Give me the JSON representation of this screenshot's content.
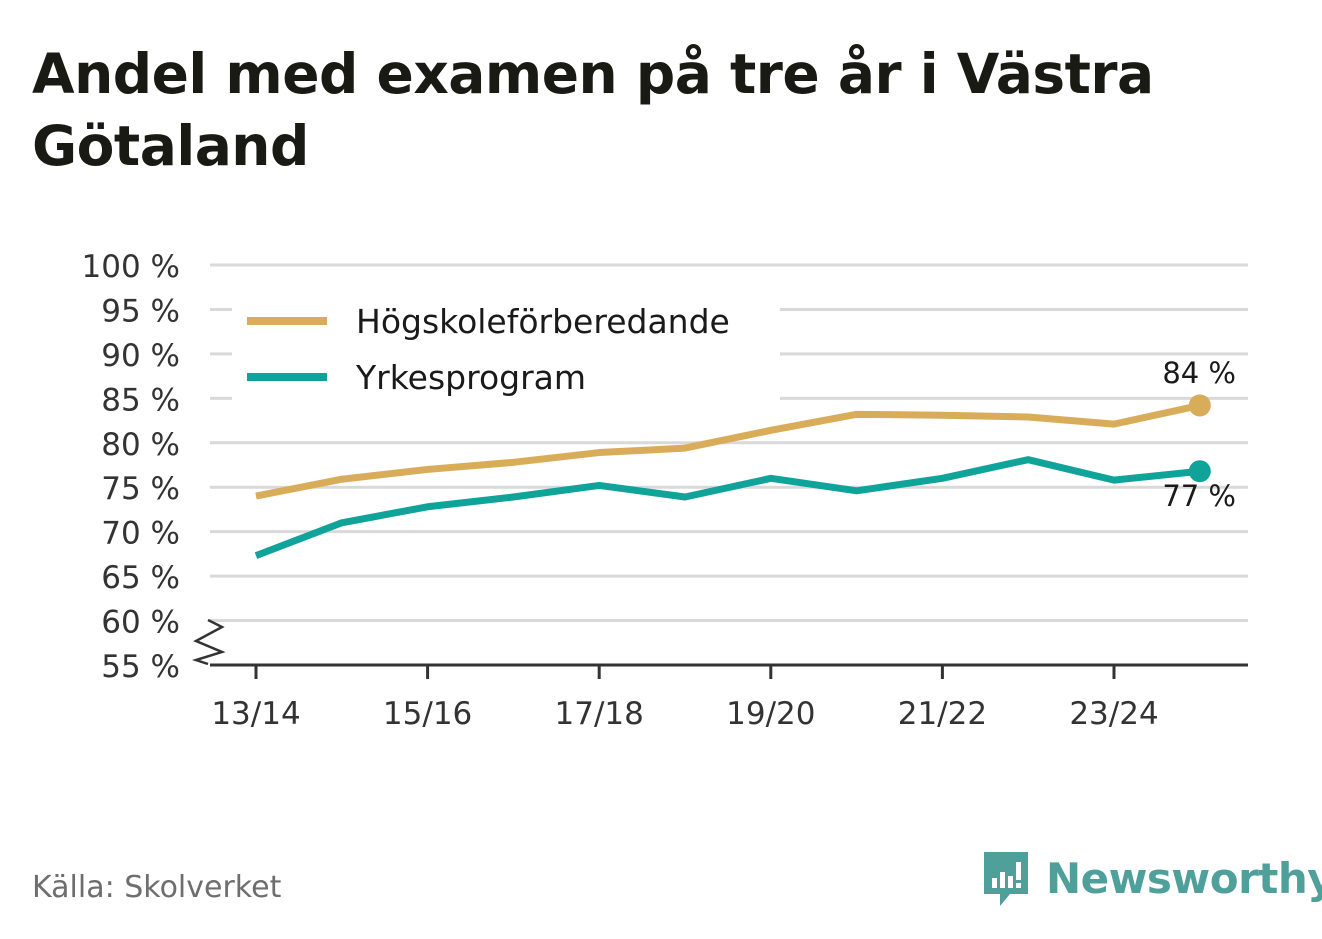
{
  "title": "Andel med examen på tre år i Västra Götaland",
  "source": "Källa: Skolverket",
  "brand": {
    "name": "Newsworthy",
    "icon": "newsworthy-logo-icon"
  },
  "colors": {
    "series1": "#d9ac5a",
    "series2": "#0fa39a",
    "grid": "#d9d9d9",
    "axis": "#333333",
    "brand": "#4fa09b"
  },
  "chart_data": {
    "type": "line",
    "title": "Andel med examen på tre år i Västra Götaland",
    "xlabel": "",
    "ylabel": "",
    "x": [
      "13/14",
      "14/15",
      "15/16",
      "16/17",
      "17/18",
      "18/19",
      "19/20",
      "20/21",
      "21/22",
      "22/23",
      "23/24",
      "24/25"
    ],
    "x_tick_labels": [
      "13/14",
      "15/16",
      "17/18",
      "19/20",
      "21/22",
      "23/24"
    ],
    "x_tick_indices": [
      0,
      2,
      4,
      6,
      8,
      10
    ],
    "ylim": [
      55,
      100
    ],
    "y_ticks": [
      55,
      60,
      65,
      70,
      75,
      80,
      85,
      90,
      95,
      100
    ],
    "y_tick_labels": [
      "55 %",
      "60 %",
      "65 %",
      "70 %",
      "75 %",
      "80 %",
      "85 %",
      "90 %",
      "95 %",
      "100 %"
    ],
    "axis_break": true,
    "grid": true,
    "legend_position": "top-left",
    "series": [
      {
        "name": "Högskoleförberedande",
        "values": [
          74.0,
          75.9,
          77.0,
          77.8,
          78.9,
          79.4,
          81.4,
          83.2,
          83.1,
          82.9,
          82.1,
          84.2
        ],
        "end_label": "84 %"
      },
      {
        "name": "Yrkesprogram",
        "values": [
          67.3,
          71.0,
          72.8,
          73.9,
          75.2,
          73.9,
          76.0,
          74.6,
          76.0,
          78.1,
          75.8,
          76.8
        ],
        "end_label": "77 %"
      }
    ]
  }
}
